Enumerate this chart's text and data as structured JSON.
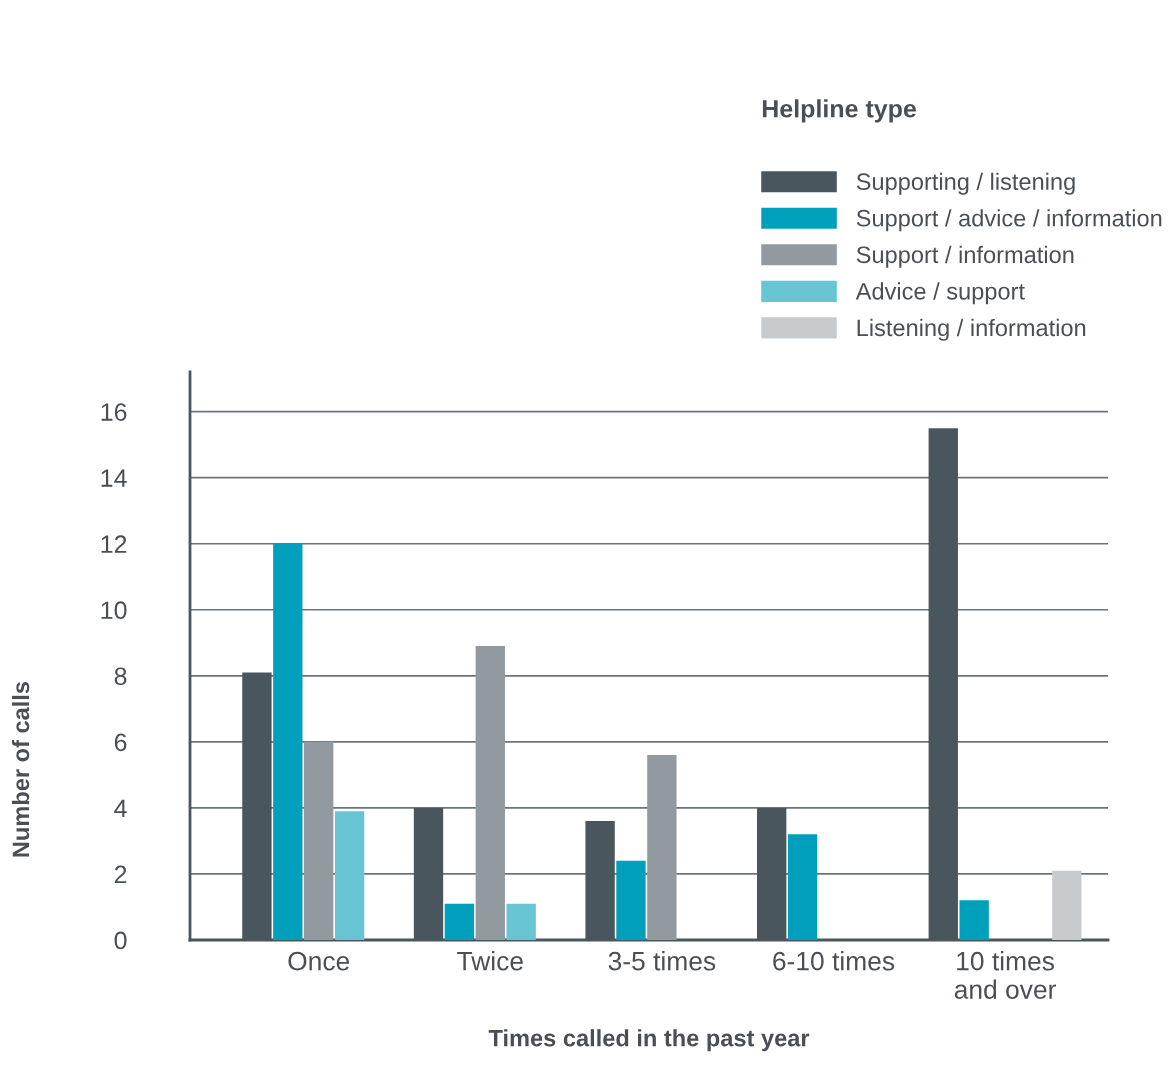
{
  "chart_data": {
    "type": "bar",
    "xlabel": "Times called in the past year",
    "ylabel": "Number of calls",
    "legend_title": "Helpline type",
    "categories": [
      "Once",
      "Twice",
      "3-5 times",
      "6-10 times",
      "10 times\nand over"
    ],
    "series": [
      {
        "name": "Supporting / listening",
        "color": "#4a565e",
        "values": [
          8.1,
          4.0,
          3.6,
          4.0,
          15.5
        ]
      },
      {
        "name": "Support / advice / information",
        "color": "#00a0bc",
        "values": [
          12.0,
          1.1,
          2.4,
          3.2,
          1.2
        ]
      },
      {
        "name": "Support / information",
        "color": "#92999f",
        "values": [
          6.0,
          8.9,
          5.6,
          null,
          null
        ]
      },
      {
        "name": "Advice / support",
        "color": "#67c5d4",
        "values": [
          3.9,
          1.1,
          null,
          null,
          null
        ]
      },
      {
        "name": "Listening / information",
        "color": "#c8cbcd",
        "values": [
          null,
          null,
          null,
          null,
          2.1
        ]
      }
    ],
    "ylim": [
      0,
      17.2
    ],
    "yticks": [
      0,
      2,
      4,
      6,
      8,
      10,
      12,
      14,
      16
    ],
    "grid": "y",
    "legend": "top right"
  }
}
